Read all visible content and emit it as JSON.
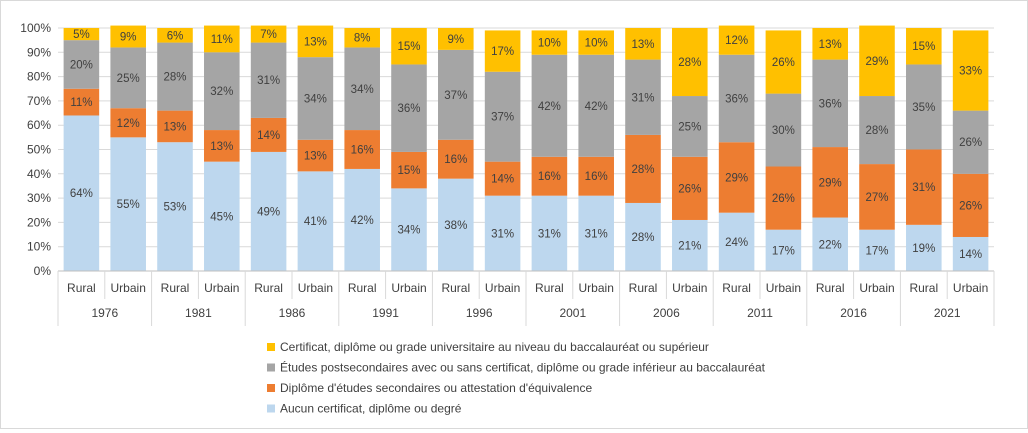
{
  "chart_data": {
    "type": "bar",
    "stacked": true,
    "percent_stacked": true,
    "title": "",
    "xlabel": "",
    "ylabel": "",
    "ylim": [
      0,
      100
    ],
    "y_ticks": [
      "0%",
      "10%",
      "20%",
      "30%",
      "40%",
      "50%",
      "60%",
      "70%",
      "80%",
      "90%",
      "100%"
    ],
    "grid": true,
    "years": [
      "1976",
      "1981",
      "1986",
      "1991",
      "1996",
      "2001",
      "2006",
      "2011",
      "2016",
      "2021"
    ],
    "areas": [
      "Rural",
      "Urbain"
    ],
    "categories": [
      "1976 Rural",
      "1976 Urbain",
      "1981 Rural",
      "1981 Urbain",
      "1986 Rural",
      "1986 Urbain",
      "1991 Rural",
      "1991 Urbain",
      "1996 Rural",
      "1996 Urbain",
      "2001 Rural",
      "2001 Urbain",
      "2006 Rural",
      "2006 Urbain",
      "2011 Rural",
      "2011 Urbain",
      "2016 Rural",
      "2016 Urbain",
      "2021 Rural",
      "2021 Urbain"
    ],
    "series": [
      {
        "name": "Aucun certificat, diplôme ou degré",
        "color": "#bdd7ee",
        "values": [
          64,
          55,
          53,
          45,
          49,
          41,
          42,
          34,
          38,
          31,
          31,
          31,
          28,
          21,
          24,
          17,
          22,
          17,
          19,
          14
        ],
        "labels": [
          "64%",
          "55%",
          "53%",
          "45%",
          "49%",
          "41%",
          "42%",
          "34%",
          "38%",
          "31%",
          "31%",
          "31%",
          "28%",
          "21%",
          "24%",
          "17%",
          "22%",
          "17%",
          "19%",
          "14%"
        ]
      },
      {
        "name": "Diplôme d'études secondaires ou attestation d'équivalence",
        "color": "#ed7d31",
        "values": [
          11,
          12,
          13,
          13,
          14,
          13,
          16,
          15,
          16,
          14,
          16,
          16,
          28,
          26,
          29,
          26,
          29,
          27,
          31,
          26
        ],
        "labels": [
          "11%",
          "12%",
          "13%",
          "13%",
          "14%",
          "13%",
          "16%",
          "15%",
          "16%",
          "14%",
          "16%",
          "16%",
          "28%",
          "26%",
          "29%",
          "26%",
          "29%",
          "27%",
          "31%",
          "26%"
        ]
      },
      {
        "name": "Études postsecondaires avec ou sans certificat, diplôme ou grade inférieur au baccalauréat",
        "color": "#a5a5a5",
        "values": [
          20,
          25,
          28,
          32,
          31,
          34,
          34,
          36,
          37,
          37,
          42,
          42,
          31,
          25,
          36,
          30,
          36,
          28,
          35,
          26
        ],
        "labels": [
          "20%",
          "25%",
          "28%",
          "32%",
          "31%",
          "34%",
          "34%",
          "36%",
          "37%",
          "37%",
          "42%",
          "42%",
          "31%",
          "25%",
          "36%",
          "30%",
          "36%",
          "28%",
          "35%",
          "26%"
        ]
      },
      {
        "name": "Certificat, diplôme ou grade universitaire au niveau du baccalauréat ou supérieur",
        "color": "#ffc000",
        "values": [
          5,
          9,
          6,
          11,
          7,
          13,
          8,
          15,
          9,
          17,
          10,
          10,
          13,
          28,
          12,
          26,
          13,
          29,
          15,
          33
        ],
        "labels": [
          "5%",
          "9%",
          "6%",
          "11%",
          "7%",
          "13%",
          "8%",
          "15%",
          "9%",
          "17%",
          "10%",
          "10%",
          "13%",
          "28%",
          "12%",
          "26%",
          "13%",
          "29%",
          "15%",
          "33%"
        ]
      }
    ],
    "legend_position": "bottom",
    "legend_order": [
      3,
      2,
      1,
      0
    ]
  }
}
